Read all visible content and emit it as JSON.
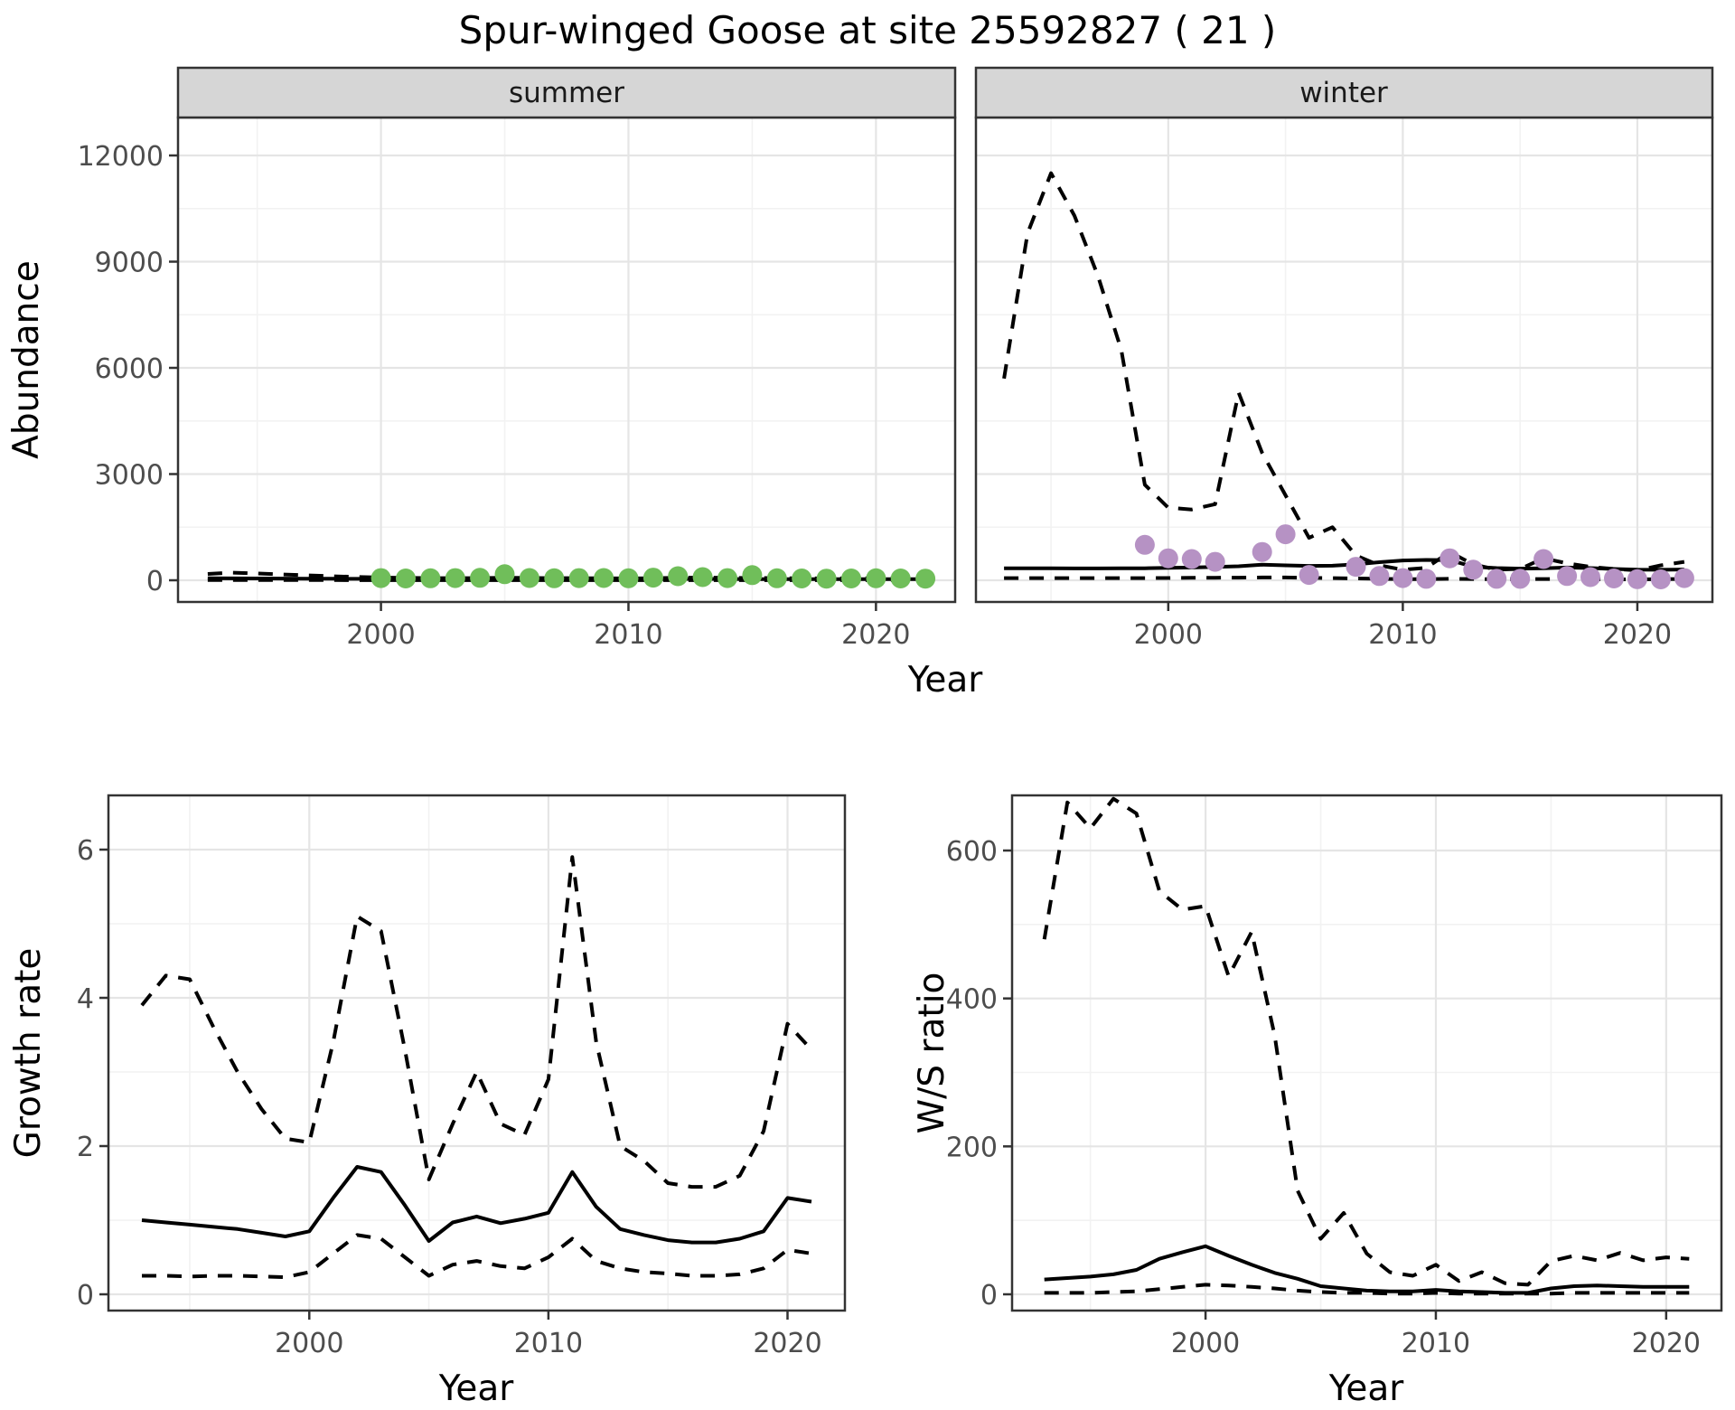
{
  "title": "Spur-winged Goose at site 25592827 ( 21 )",
  "top": {
    "ylabel": "Abundance",
    "xlabel": "Year",
    "facets": [
      {
        "label": "summer"
      },
      {
        "label": "winter"
      }
    ]
  },
  "growth": {
    "ylabel": "Growth rate",
    "xlabel": "Year"
  },
  "ws": {
    "ylabel": "W/S ratio",
    "xlabel": "Year"
  },
  "colors": {
    "summer_points": "#70BE5A",
    "winter_points": "#B692C4",
    "fit_line": "#000000",
    "ci_line": "#000000",
    "strip_bg": "#D6D6D6",
    "grid_major": "#E5E5E5",
    "grid_minor": "#F2F2F2",
    "panel_border": "#333333",
    "tick_text": "#4D4D4D"
  },
  "chart_data": [
    {
      "type": "line",
      "facet": "summer",
      "title": "Abundance - summer",
      "xlabel": "Year",
      "ylabel": "Abundance",
      "ylim": [
        0,
        12000
      ],
      "yticks": [
        0,
        3000,
        6000,
        9000,
        12000
      ],
      "y_minor": [
        1500,
        4500,
        7500,
        10500
      ],
      "xticks": [
        2000,
        2010,
        2020
      ],
      "x_minor": [
        1995,
        2005,
        2015
      ],
      "x": [
        1993,
        1994,
        1995,
        1996,
        1997,
        1998,
        1999,
        2000,
        2001,
        2002,
        2003,
        2004,
        2005,
        2006,
        2007,
        2008,
        2009,
        2010,
        2011,
        2012,
        2013,
        2014,
        2015,
        2016,
        2017,
        2018,
        2019,
        2020,
        2021,
        2022
      ],
      "series": [
        {
          "name": "lower_ci",
          "style": "dashed",
          "values": [
            6,
            6,
            5,
            5,
            4,
            4,
            3,
            3,
            3,
            2,
            2,
            2,
            2,
            2,
            2,
            2,
            2,
            2,
            2,
            2,
            2,
            2,
            2,
            2,
            2,
            2,
            2,
            2,
            2,
            2
          ]
        },
        {
          "name": "upper_ci",
          "style": "dashed",
          "values": [
            180,
            215,
            195,
            165,
            140,
            115,
            95,
            78,
            68,
            62,
            60,
            62,
            72,
            66,
            62,
            58,
            55,
            53,
            58,
            68,
            76,
            70,
            63,
            60,
            56,
            54,
            56,
            58,
            60,
            58
          ]
        },
        {
          "name": "fit",
          "style": "solid",
          "values": [
            55,
            53,
            51,
            49,
            47,
            44,
            42,
            40,
            38,
            36,
            35,
            34,
            36,
            35,
            34,
            33,
            32,
            31,
            33,
            36,
            38,
            36,
            34,
            33,
            31,
            30,
            31,
            32,
            33,
            32
          ]
        }
      ],
      "points": {
        "name": "observed-summer",
        "color": "#70BE5A",
        "x": [
          2000,
          2001,
          2002,
          2003,
          2004,
          2005,
          2006,
          2007,
          2008,
          2009,
          2010,
          2011,
          2012,
          2013,
          2014,
          2015,
          2016,
          2017,
          2018,
          2019,
          2020,
          2021,
          2022
        ],
        "y": [
          60,
          50,
          55,
          60,
          70,
          170,
          65,
          55,
          60,
          65,
          55,
          75,
          115,
          90,
          60,
          145,
          55,
          50,
          45,
          50,
          55,
          50,
          45
        ]
      }
    },
    {
      "type": "line",
      "facet": "winter",
      "title": "Abundance - winter",
      "xlabel": "Year",
      "ylabel": "Abundance",
      "ylim": [
        0,
        12000
      ],
      "yticks": [
        0,
        3000,
        6000,
        9000,
        12000
      ],
      "y_minor": [
        1500,
        4500,
        7500,
        10500
      ],
      "xticks": [
        2000,
        2010,
        2020
      ],
      "x_minor": [
        1995,
        2005,
        2015
      ],
      "x": [
        1993,
        1994,
        1995,
        1996,
        1997,
        1998,
        1999,
        2000,
        2001,
        2002,
        2003,
        2004,
        2005,
        2006,
        2007,
        2008,
        2009,
        2010,
        2011,
        2012,
        2013,
        2014,
        2015,
        2016,
        2017,
        2018,
        2019,
        2020,
        2021,
        2022
      ],
      "series": [
        {
          "name": "lower_ci",
          "style": "dashed",
          "values": [
            60,
            60,
            60,
            60,
            60,
            60,
            62,
            65,
            70,
            72,
            75,
            80,
            78,
            70,
            62,
            52,
            42,
            32,
            30,
            42,
            36,
            30,
            30,
            36,
            36,
            30,
            26,
            25,
            30,
            36
          ]
        },
        {
          "name": "upper_ci",
          "style": "dashed",
          "values": [
            5700,
            9800,
            11500,
            10300,
            8600,
            6500,
            2700,
            2050,
            2000,
            2150,
            5300,
            3600,
            2400,
            1200,
            1500,
            700,
            420,
            300,
            350,
            800,
            450,
            300,
            320,
            620,
            480,
            380,
            320,
            280,
            420,
            520
          ]
        },
        {
          "name": "fit",
          "style": "solid",
          "values": [
            340,
            338,
            336,
            335,
            335,
            336,
            340,
            350,
            360,
            375,
            395,
            440,
            420,
            405,
            410,
            450,
            510,
            560,
            575,
            570,
            380,
            345,
            330,
            340,
            360,
            345,
            320,
            300,
            295,
            305
          ]
        }
      ],
      "points": {
        "name": "observed-winter",
        "color": "#B692C4",
        "x": [
          1999,
          2000,
          2001,
          2002,
          2004,
          2005,
          2006,
          2008,
          2009,
          2010,
          2011,
          2012,
          2013,
          2014,
          2015,
          2016,
          2017,
          2018,
          2019,
          2020,
          2021,
          2022
        ],
        "y": [
          1000,
          620,
          600,
          520,
          800,
          1300,
          150,
          380,
          120,
          60,
          40,
          620,
          300,
          40,
          40,
          600,
          120,
          90,
          50,
          30,
          25,
          60
        ]
      }
    },
    {
      "type": "line",
      "facet": null,
      "title": "Growth rate",
      "xlabel": "Year",
      "ylabel": "Growth rate",
      "ylim": [
        0,
        6
      ],
      "yticks": [
        0,
        2,
        4,
        6
      ],
      "y_minor": [
        1,
        3,
        5
      ],
      "xticks": [
        2000,
        2010,
        2020
      ],
      "x_minor": [
        1995,
        2005,
        2015
      ],
      "x": [
        1993,
        1994,
        1995,
        1996,
        1997,
        1998,
        1999,
        2000,
        2001,
        2002,
        2003,
        2004,
        2005,
        2006,
        2007,
        2008,
        2009,
        2010,
        2011,
        2012,
        2013,
        2014,
        2015,
        2016,
        2017,
        2018,
        2019,
        2020,
        2021
      ],
      "series": [
        {
          "name": "lower_ci",
          "style": "dashed",
          "values": [
            0.25,
            0.25,
            0.24,
            0.25,
            0.25,
            0.24,
            0.23,
            0.3,
            0.55,
            0.8,
            0.75,
            0.5,
            0.25,
            0.4,
            0.45,
            0.38,
            0.35,
            0.5,
            0.75,
            0.45,
            0.35,
            0.3,
            0.28,
            0.25,
            0.25,
            0.27,
            0.35,
            0.6,
            0.55
          ]
        },
        {
          "name": "upper_ci",
          "style": "dashed",
          "values": [
            3.9,
            4.3,
            4.25,
            3.6,
            3.0,
            2.5,
            2.1,
            2.05,
            3.4,
            5.1,
            4.9,
            3.3,
            1.55,
            2.3,
            3.0,
            2.3,
            2.15,
            2.9,
            5.9,
            3.4,
            2.0,
            1.8,
            1.5,
            1.45,
            1.45,
            1.6,
            2.2,
            3.65,
            3.3
          ]
        },
        {
          "name": "fit",
          "style": "solid",
          "values": [
            1.0,
            0.97,
            0.94,
            0.91,
            0.88,
            0.83,
            0.78,
            0.85,
            1.3,
            1.72,
            1.65,
            1.2,
            0.72,
            0.97,
            1.05,
            0.96,
            1.02,
            1.1,
            1.65,
            1.18,
            0.88,
            0.8,
            0.73,
            0.7,
            0.7,
            0.75,
            0.85,
            1.3,
            1.25
          ]
        }
      ],
      "points": null
    },
    {
      "type": "line",
      "facet": null,
      "title": "W/S ratio",
      "xlabel": "Year",
      "ylabel": "W/S ratio",
      "ylim": [
        0,
        600
      ],
      "yticks": [
        0,
        200,
        400,
        600
      ],
      "y_minor": [
        100,
        300,
        500
      ],
      "xticks": [
        2000,
        2010,
        2020
      ],
      "x_minor": [
        1995,
        2005,
        2015
      ],
      "x": [
        1993,
        1994,
        1995,
        1996,
        1997,
        1998,
        1999,
        2000,
        2001,
        2002,
        2003,
        2004,
        2005,
        2006,
        2007,
        2008,
        2009,
        2010,
        2011,
        2012,
        2013,
        2014,
        2015,
        2016,
        2017,
        2018,
        2019,
        2020,
        2021
      ],
      "series": [
        {
          "name": "lower_ci",
          "style": "dashed",
          "values": [
            2,
            2,
            2,
            3,
            4,
            7,
            10,
            13,
            12,
            10,
            8,
            5,
            3,
            2,
            2,
            1,
            1,
            2,
            1,
            1,
            1,
            1,
            1,
            2,
            2,
            2,
            2,
            2,
            2
          ]
        },
        {
          "name": "upper_ci",
          "style": "dashed",
          "values": [
            480,
            665,
            630,
            670,
            650,
            545,
            520,
            525,
            430,
            490,
            350,
            140,
            75,
            110,
            55,
            30,
            25,
            40,
            18,
            30,
            15,
            13,
            45,
            52,
            46,
            56,
            46,
            50,
            48
          ]
        },
        {
          "name": "fit",
          "style": "solid",
          "values": [
            20,
            22,
            24,
            27,
            33,
            48,
            57,
            65,
            52,
            40,
            29,
            21,
            11,
            8,
            5,
            4,
            4,
            6,
            4,
            3,
            2,
            2,
            8,
            11,
            12,
            11,
            10,
            10,
            10
          ]
        }
      ],
      "points": null
    }
  ]
}
